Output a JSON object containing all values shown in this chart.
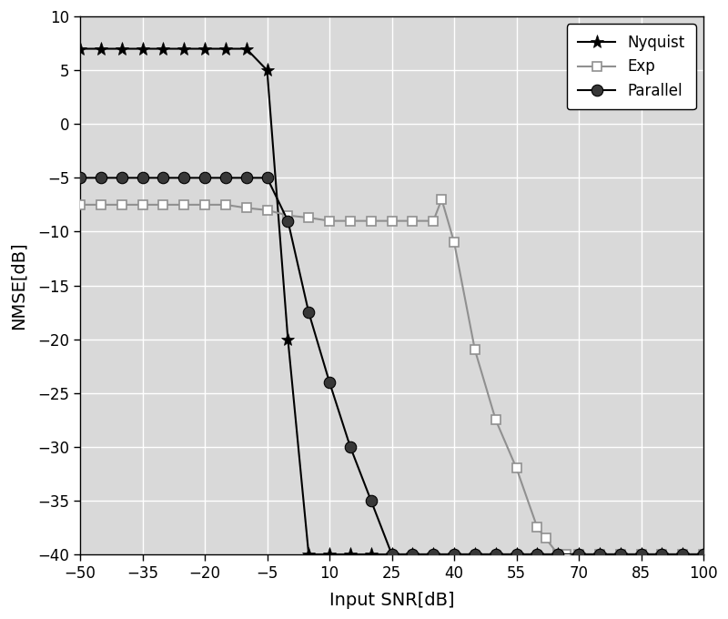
{
  "title": "",
  "xlabel": "Input SNR[dB]",
  "ylabel": "NMSE[dB]",
  "xlim": [
    -50,
    100
  ],
  "ylim": [
    -40,
    10
  ],
  "xticks": [
    -50,
    -35,
    -20,
    -5,
    10,
    25,
    40,
    55,
    70,
    85,
    100
  ],
  "yticks": [
    -40,
    -35,
    -30,
    -25,
    -20,
    -15,
    -10,
    -5,
    0,
    5,
    10
  ],
  "background_color": "#d3d3d3",
  "grid_color": "#ffffff",
  "nyquist_x": [
    -50,
    -45,
    -40,
    -35,
    -30,
    -25,
    -20,
    -15,
    -10,
    -5,
    0,
    5,
    10,
    15,
    20,
    25,
    30,
    35,
    40,
    45,
    50,
    55,
    60,
    65,
    70,
    75,
    80,
    85,
    90,
    95,
    100
  ],
  "nyquist_y": [
    7,
    7,
    7,
    7,
    7,
    7,
    7,
    7,
    7,
    5,
    -20,
    -40,
    -40,
    -40,
    -40,
    -40,
    -40,
    -40,
    -40,
    -40,
    -40,
    -40,
    -40,
    -40,
    -40,
    -40,
    -40,
    -40,
    -40,
    -40,
    -40
  ],
  "exp_x": [
    -50,
    -45,
    -40,
    -35,
    -30,
    -25,
    -20,
    -15,
    -10,
    -5,
    0,
    5,
    10,
    15,
    20,
    25,
    30,
    35,
    37,
    40,
    45,
    50,
    55,
    60,
    62,
    65,
    67,
    70,
    75,
    80,
    85,
    90,
    95,
    100
  ],
  "exp_y": [
    -7.5,
    -7.5,
    -7.5,
    -7.5,
    -7.5,
    -7.5,
    -7.5,
    -7.5,
    -7.8,
    -8,
    -8.5,
    -8.7,
    -9,
    -9,
    -9,
    -9,
    -9,
    -9,
    -7,
    -11,
    -21,
    -27.5,
    -32,
    -37.5,
    -38.5,
    -40,
    -40,
    -40,
    -40,
    -40,
    -40,
    -40,
    -40,
    -40
  ],
  "parallel_x": [
    -50,
    -45,
    -40,
    -35,
    -30,
    -25,
    -20,
    -15,
    -10,
    -5,
    0,
    5,
    10,
    15,
    20,
    25,
    30,
    35,
    40,
    45,
    50,
    55,
    60,
    65,
    70,
    75,
    80,
    85,
    90,
    95,
    100
  ],
  "parallel_y": [
    -5,
    -5,
    -5,
    -5,
    -5,
    -5,
    -5,
    -5,
    -5,
    -5,
    -9,
    -17.5,
    -24,
    -30,
    -35,
    -40,
    -40,
    -40,
    -40,
    -40,
    -40,
    -40,
    -40,
    -40,
    -40,
    -40,
    -40,
    -40,
    -40,
    -40,
    -40
  ],
  "nyquist_color": "#000000",
  "exp_color": "#909090",
  "parallel_color": "#000000",
  "legend_labels": [
    "Nyquist",
    "Exp",
    "Parallel"
  ]
}
